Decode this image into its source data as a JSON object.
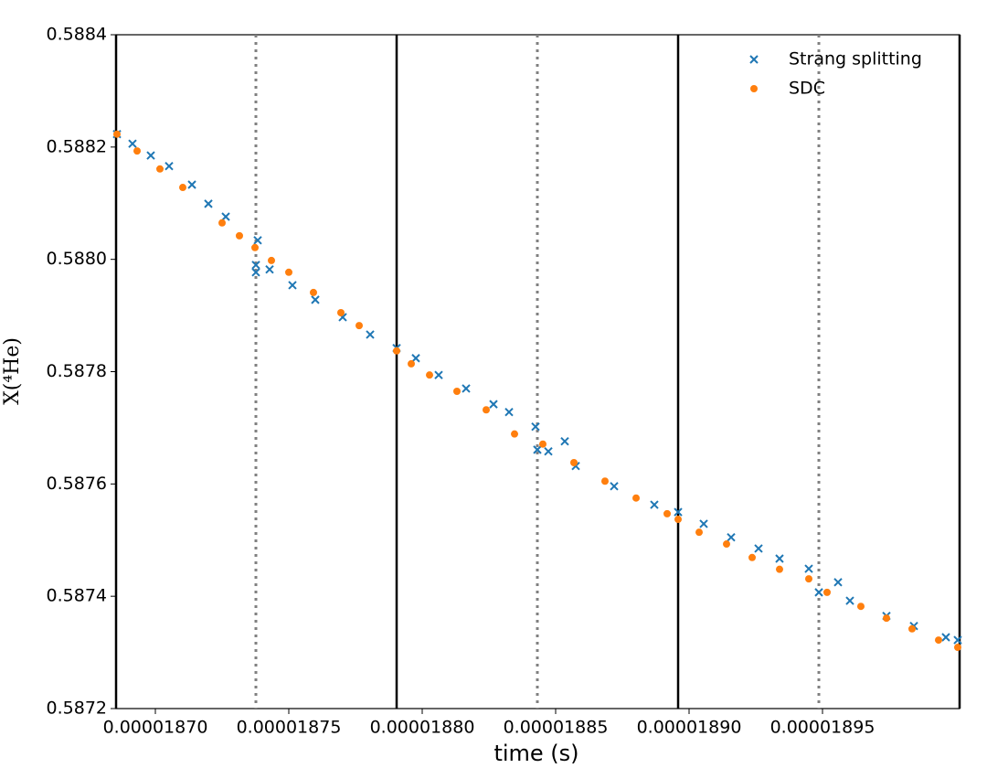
{
  "chart_data": {
    "type": "scatter",
    "xlabel": "time (s)",
    "ylabel": "X(⁴He)",
    "xlim": [
      1.868527e-05,
      1.900137e-05
    ],
    "ylim": [
      0.5872,
      0.5884
    ],
    "xticks": [
      {
        "value": 1.87e-05,
        "label": "0.00001870"
      },
      {
        "value": 1.875e-05,
        "label": "0.00001875"
      },
      {
        "value": 1.88e-05,
        "label": "0.00001880"
      },
      {
        "value": 1.885e-05,
        "label": "0.00001885"
      },
      {
        "value": 1.89e-05,
        "label": "0.00001890"
      },
      {
        "value": 1.895e-05,
        "label": "0.00001895"
      }
    ],
    "yticks": [
      0.5872,
      0.5874,
      0.5876,
      0.5878,
      {
        "value": 0.588,
        "label": "0.5880"
      },
      0.5882,
      0.5884
    ],
    "legend": "upper right",
    "solid_vlines": [
      1.868527e-05,
      1.879041e-05,
      1.889589e-05,
      1.900137e-05
    ],
    "dotted_vlines": [
      1.873767e-05,
      1.884315e-05,
      1.894863e-05
    ],
    "series": [
      {
        "name": "Strang splitting",
        "color": "#1f77b4",
        "marker": "x",
        "x": [
          1.868561e-05,
          1.869143e-05,
          1.869828e-05,
          1.870513e-05,
          1.87137e-05,
          1.871986e-05,
          1.872637e-05,
          1.873835e-05,
          1.873767e-05,
          1.873767e-05,
          1.87428e-05,
          1.875137e-05,
          1.875993e-05,
          1.87702e-05,
          1.878048e-05,
          1.879041e-05,
          1.87976e-05,
          1.880616e-05,
          1.881644e-05,
          1.882671e-05,
          1.883253e-05,
          1.884246e-05,
          1.884315e-05,
          1.884726e-05,
          1.885342e-05,
          1.885753e-05,
          1.887192e-05,
          1.888698e-05,
          1.889589e-05,
          1.890548e-05,
          1.891575e-05,
          1.892603e-05,
          1.89339e-05,
          1.894486e-05,
          1.894863e-05,
          1.895582e-05,
          1.896027e-05,
          1.897397e-05,
          1.898425e-05,
          1.899623e-05,
          1.900068e-05
        ],
        "values": [
          0.588223,
          0.588206,
          0.588185,
          0.588166,
          0.588133,
          0.588099,
          0.588076,
          0.588034,
          0.58799,
          0.587977,
          0.587982,
          0.587954,
          0.587928,
          0.587897,
          0.587866,
          0.587842,
          0.587824,
          0.587794,
          0.58777,
          0.587742,
          0.587728,
          0.587702,
          0.587661,
          0.587658,
          0.587676,
          0.587632,
          0.587596,
          0.587563,
          0.58755,
          0.587529,
          0.587505,
          0.587485,
          0.587467,
          0.587449,
          0.587407,
          0.587425,
          0.587392,
          0.587365,
          0.587347,
          0.587327,
          0.587322
        ]
      },
      {
        "name": "SDC",
        "color": "#ff7f0e",
        "marker": "o",
        "x": [
          1.868561e-05,
          1.869315e-05,
          1.870171e-05,
          1.871027e-05,
          1.8725e-05,
          1.87315e-05,
          1.873733e-05,
          1.874349e-05,
          1.875e-05,
          1.875924e-05,
          1.876952e-05,
          1.877637e-05,
          1.879041e-05,
          1.879589e-05,
          1.880274e-05,
          1.881301e-05,
          1.882397e-05,
          1.883459e-05,
          1.88452e-05,
          1.885685e-05,
          1.886849e-05,
          1.888014e-05,
          1.889178e-05,
          1.889589e-05,
          1.890377e-05,
          1.891404e-05,
          1.892363e-05,
          1.89339e-05,
          1.894486e-05,
          1.895171e-05,
          1.896438e-05,
          1.897397e-05,
          1.898356e-05,
          1.899349e-05,
          1.900068e-05
        ],
        "values": [
          0.588223,
          0.588193,
          0.588161,
          0.588128,
          0.588065,
          0.588042,
          0.588021,
          0.587998,
          0.587977,
          0.587941,
          0.587905,
          0.587882,
          0.587837,
          0.587814,
          0.587794,
          0.587765,
          0.587732,
          0.587689,
          0.587671,
          0.587638,
          0.587605,
          0.587575,
          0.587547,
          0.587537,
          0.587514,
          0.587493,
          0.587469,
          0.587448,
          0.587431,
          0.587407,
          0.587382,
          0.587361,
          0.587342,
          0.587322,
          0.587309
        ]
      }
    ]
  }
}
